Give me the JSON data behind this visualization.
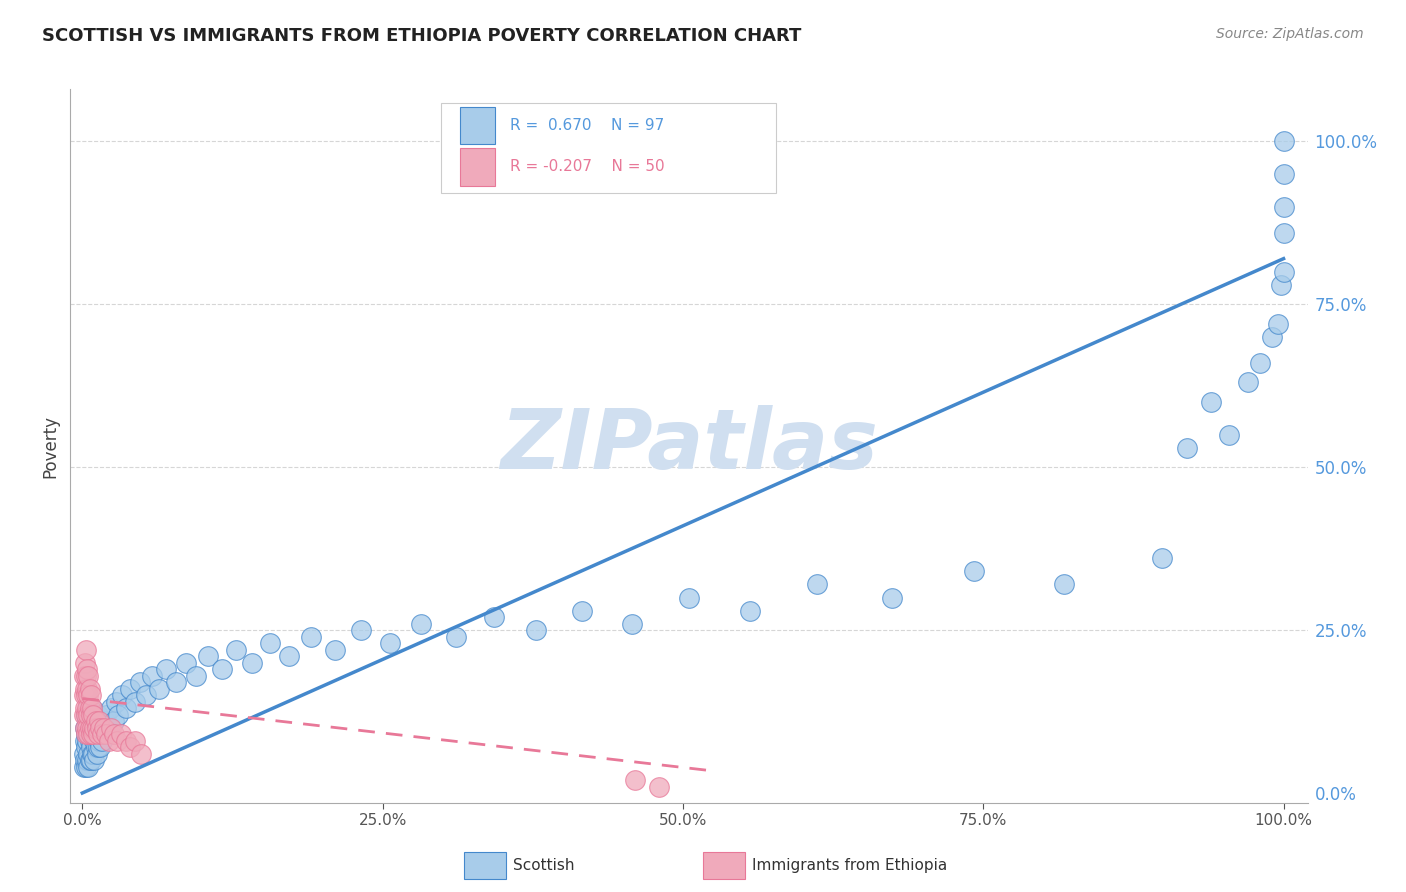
{
  "title": "SCOTTISH VS IMMIGRANTS FROM ETHIOPIA POVERTY CORRELATION CHART",
  "source": "Source: ZipAtlas.com",
  "ylabel": "Poverty",
  "r_scottish": 0.67,
  "n_scottish": 97,
  "r_ethiopia": -0.207,
  "n_ethiopia": 50,
  "color_scottish": "#A8CCEA",
  "color_ethiopia": "#F0AABB",
  "line_color_scottish": "#4488CC",
  "line_color_ethiopia": "#E87898",
  "background_color": "#FFFFFF",
  "grid_color": "#CCCCCC",
  "watermark_color": "#D0DFF0",
  "right_tick_color": "#5599DD",
  "ytick_labels": [
    "0.0%",
    "25.0%",
    "50.0%",
    "75.0%",
    "100.0%"
  ],
  "ytick_vals": [
    0.0,
    0.25,
    0.5,
    0.75,
    1.0
  ],
  "xtick_labels": [
    "0.0%",
    "25.0%",
    "50.0%",
    "75.0%",
    "100.0%"
  ],
  "xtick_vals": [
    0.0,
    0.25,
    0.5,
    0.75,
    1.0
  ],
  "scottish_x": [
    0.001,
    0.001,
    0.002,
    0.002,
    0.002,
    0.003,
    0.003,
    0.003,
    0.003,
    0.004,
    0.004,
    0.004,
    0.005,
    0.005,
    0.005,
    0.005,
    0.006,
    0.006,
    0.006,
    0.007,
    0.007,
    0.007,
    0.008,
    0.008,
    0.008,
    0.009,
    0.009,
    0.01,
    0.01,
    0.01,
    0.011,
    0.011,
    0.012,
    0.012,
    0.013,
    0.013,
    0.014,
    0.015,
    0.015,
    0.016,
    0.017,
    0.018,
    0.019,
    0.02,
    0.022,
    0.024,
    0.026,
    0.028,
    0.03,
    0.033,
    0.036,
    0.04,
    0.044,
    0.048,
    0.053,
    0.058,
    0.064,
    0.07,
    0.078,
    0.086,
    0.095,
    0.105,
    0.116,
    0.128,
    0.141,
    0.156,
    0.172,
    0.19,
    0.21,
    0.232,
    0.256,
    0.282,
    0.311,
    0.343,
    0.378,
    0.416,
    0.458,
    0.505,
    0.556,
    0.612,
    0.674,
    0.742,
    0.817,
    0.899,
    0.92,
    0.94,
    0.955,
    0.97,
    0.98,
    0.99,
    0.995,
    0.998,
    1.0,
    1.0,
    1.0,
    1.0,
    1.0
  ],
  "scottish_y": [
    0.04,
    0.06,
    0.05,
    0.08,
    0.1,
    0.04,
    0.07,
    0.09,
    0.12,
    0.05,
    0.08,
    0.11,
    0.04,
    0.06,
    0.09,
    0.13,
    0.05,
    0.08,
    0.12,
    0.05,
    0.07,
    0.1,
    0.06,
    0.09,
    0.13,
    0.06,
    0.1,
    0.05,
    0.08,
    0.12,
    0.07,
    0.11,
    0.06,
    0.1,
    0.07,
    0.12,
    0.08,
    0.07,
    0.11,
    0.08,
    0.09,
    0.1,
    0.11,
    0.12,
    0.1,
    0.13,
    0.11,
    0.14,
    0.12,
    0.15,
    0.13,
    0.16,
    0.14,
    0.17,
    0.15,
    0.18,
    0.16,
    0.19,
    0.17,
    0.2,
    0.18,
    0.21,
    0.19,
    0.22,
    0.2,
    0.23,
    0.21,
    0.24,
    0.22,
    0.25,
    0.23,
    0.26,
    0.24,
    0.27,
    0.25,
    0.28,
    0.26,
    0.3,
    0.28,
    0.32,
    0.3,
    0.34,
    0.32,
    0.36,
    0.53,
    0.6,
    0.55,
    0.63,
    0.66,
    0.7,
    0.72,
    0.78,
    0.8,
    0.86,
    0.9,
    0.95,
    1.0
  ],
  "ethiopia_x": [
    0.001,
    0.001,
    0.001,
    0.002,
    0.002,
    0.002,
    0.002,
    0.003,
    0.003,
    0.003,
    0.003,
    0.003,
    0.004,
    0.004,
    0.004,
    0.004,
    0.005,
    0.005,
    0.005,
    0.005,
    0.006,
    0.006,
    0.006,
    0.007,
    0.007,
    0.007,
    0.008,
    0.008,
    0.009,
    0.009,
    0.01,
    0.011,
    0.012,
    0.013,
    0.014,
    0.015,
    0.016,
    0.018,
    0.02,
    0.022,
    0.024,
    0.026,
    0.029,
    0.032,
    0.036,
    0.04,
    0.044,
    0.049,
    0.46,
    0.48
  ],
  "ethiopia_y": [
    0.12,
    0.15,
    0.18,
    0.1,
    0.13,
    0.16,
    0.2,
    0.09,
    0.12,
    0.15,
    0.18,
    0.22,
    0.1,
    0.13,
    0.16,
    0.19,
    0.09,
    0.12,
    0.15,
    0.18,
    0.1,
    0.13,
    0.16,
    0.09,
    0.12,
    0.15,
    0.1,
    0.13,
    0.09,
    0.12,
    0.1,
    0.11,
    0.1,
    0.09,
    0.11,
    0.1,
    0.09,
    0.1,
    0.09,
    0.08,
    0.1,
    0.09,
    0.08,
    0.09,
    0.08,
    0.07,
    0.08,
    0.06,
    0.02,
    0.01
  ],
  "line_s_x0": 0.0,
  "line_s_y0": 0.0,
  "line_s_x1": 1.0,
  "line_s_y1": 0.82,
  "line_e_x0": 0.0,
  "line_e_y0": 0.145,
  "line_e_x1": 0.52,
  "line_e_y1": 0.035
}
